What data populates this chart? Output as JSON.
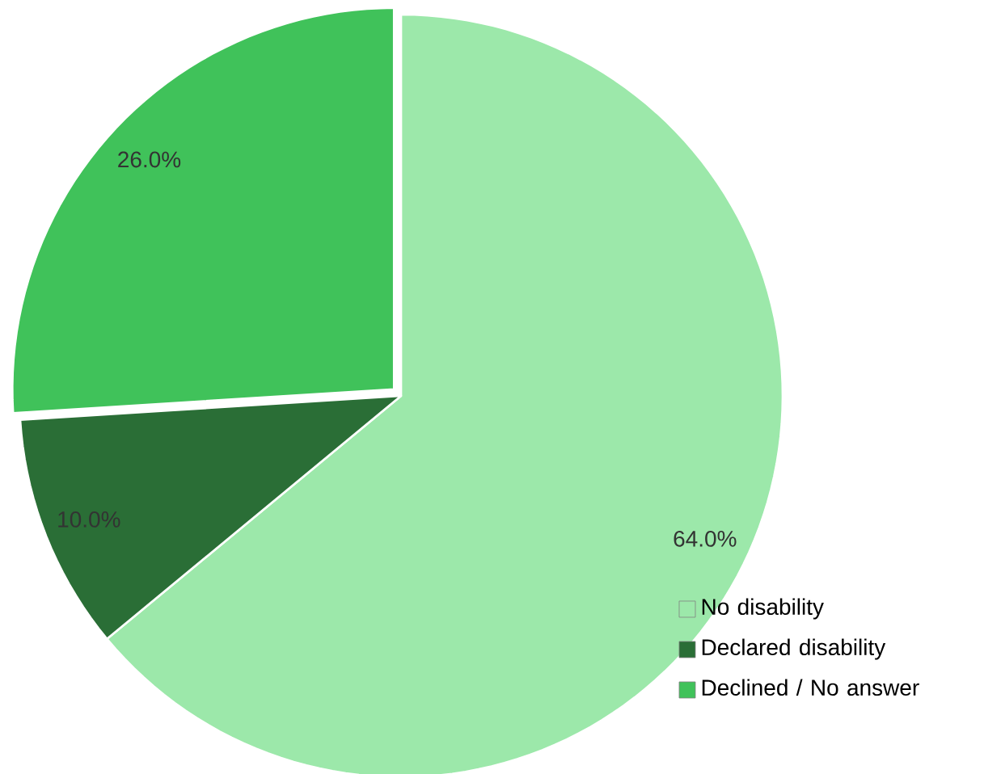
{
  "chart_data": {
    "type": "pie",
    "categories": [
      "No disability",
      "Declared disability",
      "Declined / No answer"
    ],
    "values": [
      64,
      10,
      26
    ],
    "colors": [
      "#9ce8aa",
      "#2a6e36",
      "#40c25a"
    ],
    "value_labels": [
      "64.0%",
      "10.0%",
      "26.0%"
    ],
    "legend": "bottom right"
  }
}
